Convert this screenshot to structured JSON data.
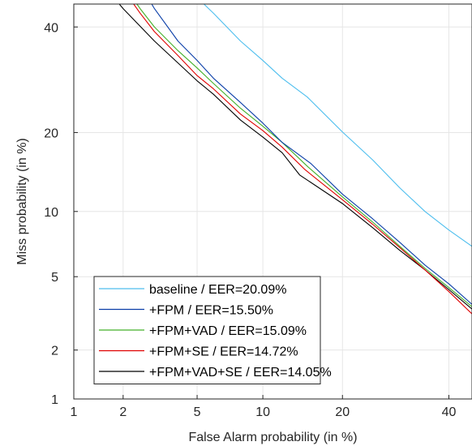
{
  "chart_data": {
    "type": "line",
    "title": "",
    "xlabel": "False Alarm probability (in %)",
    "ylabel": "Miss probability (in %)",
    "x_scale": "probit",
    "y_scale": "probit",
    "xlim": [
      1,
      45
    ],
    "ylim": [
      1,
      45
    ],
    "x_ticks": [
      1,
      2,
      5,
      10,
      20,
      40
    ],
    "y_ticks": [
      1,
      2,
      5,
      10,
      20,
      40
    ],
    "grid": true,
    "legend_position": "lower-left",
    "series": [
      {
        "name": "baseline / EER=20.09%",
        "color": "#4dbeee",
        "points": [
          [
            5.4,
            45
          ],
          [
            6,
            43
          ],
          [
            8,
            37
          ],
          [
            10,
            33
          ],
          [
            12,
            29.5
          ],
          [
            15,
            26
          ],
          [
            20,
            20.09
          ],
          [
            25,
            16
          ],
          [
            30,
            12.5
          ],
          [
            35,
            10
          ],
          [
            40,
            8.3
          ],
          [
            45,
            7
          ]
        ]
      },
      {
        "name": "+FPM / EER=15.50%",
        "color": "#0a3ea8",
        "points": [
          [
            2.9,
            45
          ],
          [
            3,
            44
          ],
          [
            4,
            37
          ],
          [
            5,
            33
          ],
          [
            6,
            29.5
          ],
          [
            8,
            25
          ],
          [
            10,
            21.5
          ],
          [
            12,
            18.5
          ],
          [
            15.5,
            15.5
          ],
          [
            20,
            11.8
          ],
          [
            25,
            9.3
          ],
          [
            30,
            7.3
          ],
          [
            35,
            5.7
          ],
          [
            40,
            4.6
          ],
          [
            45,
            3.6
          ]
        ]
      },
      {
        "name": "+FPM+VAD / EER=15.09%",
        "color": "#43b02a",
        "points": [
          [
            2.4,
            45
          ],
          [
            2.5,
            44
          ],
          [
            3,
            40
          ],
          [
            4,
            35
          ],
          [
            5,
            31.5
          ],
          [
            6,
            28.5
          ],
          [
            8,
            24
          ],
          [
            10,
            21
          ],
          [
            12,
            18.5
          ],
          [
            15.09,
            15.09
          ],
          [
            20,
            11.5
          ],
          [
            25,
            9
          ],
          [
            30,
            7
          ],
          [
            35,
            5.5
          ],
          [
            40,
            4.4
          ],
          [
            45,
            3.5
          ]
        ]
      },
      {
        "name": "+FPM+SE / EER=14.72%",
        "color": "#e00000",
        "points": [
          [
            2.3,
            45
          ],
          [
            2.5,
            43
          ],
          [
            3,
            39
          ],
          [
            4,
            34
          ],
          [
            5,
            30
          ],
          [
            6,
            27.5
          ],
          [
            8,
            23
          ],
          [
            10,
            20.3
          ],
          [
            12,
            17.8
          ],
          [
            14.72,
            14.72
          ],
          [
            20,
            11.2
          ],
          [
            25,
            8.8
          ],
          [
            30,
            6.9
          ],
          [
            35,
            5.4
          ],
          [
            40,
            4.2
          ],
          [
            45,
            3.2
          ]
        ]
      },
      {
        "name": "+FPM+VAD+SE / EER=14.05%",
        "color": "#000000",
        "points": [
          [
            1.9,
            45
          ],
          [
            2,
            44
          ],
          [
            3,
            37
          ],
          [
            4,
            32.5
          ],
          [
            5,
            29
          ],
          [
            6,
            26.5
          ],
          [
            8,
            22
          ],
          [
            10,
            19.3
          ],
          [
            12,
            17
          ],
          [
            14.05,
            14.05
          ],
          [
            20,
            10.8
          ],
          [
            25,
            8.5
          ],
          [
            30,
            6.7
          ],
          [
            35,
            5.4
          ],
          [
            40,
            4.3
          ],
          [
            45,
            3.4
          ]
        ]
      }
    ]
  }
}
